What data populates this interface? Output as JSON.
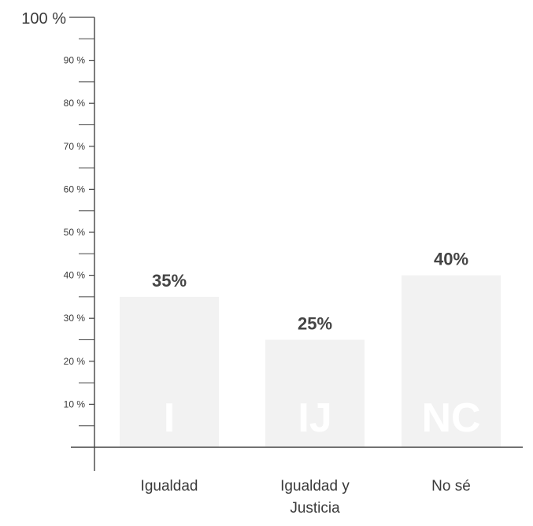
{
  "chart_data": {
    "type": "bar",
    "categories": [
      "Igualdad",
      "Igualdad y Justicia",
      "No sé"
    ],
    "category_lines": [
      [
        "Igualdad"
      ],
      [
        "Igualdad y",
        "Justicia"
      ],
      [
        "No sé"
      ]
    ],
    "bar_codes": [
      "I",
      "IJ",
      "NC"
    ],
    "values": [
      35,
      25,
      40
    ],
    "value_labels": [
      "35%",
      "25%",
      "40%"
    ],
    "ylim": [
      0,
      100
    ],
    "major_ticks": [
      10,
      20,
      30,
      40,
      50,
      60,
      70,
      80,
      90,
      100
    ],
    "tick_labels": [
      "10 %",
      "20 %",
      "30 %",
      "40 %",
      "50 %",
      "60 %",
      "70 %",
      "80 %",
      "90 %",
      "100 %"
    ],
    "minor_ticks": [
      5,
      15,
      25,
      35,
      45,
      55,
      65,
      75,
      85,
      95
    ],
    "title": "",
    "xlabel": "",
    "ylabel": "",
    "grid": false,
    "colors": {
      "bar": "#f2f2f2",
      "axis": "#444444",
      "text": "#3a3a3a",
      "value_text": "#444444",
      "bar_code": "#ffffff"
    }
  }
}
